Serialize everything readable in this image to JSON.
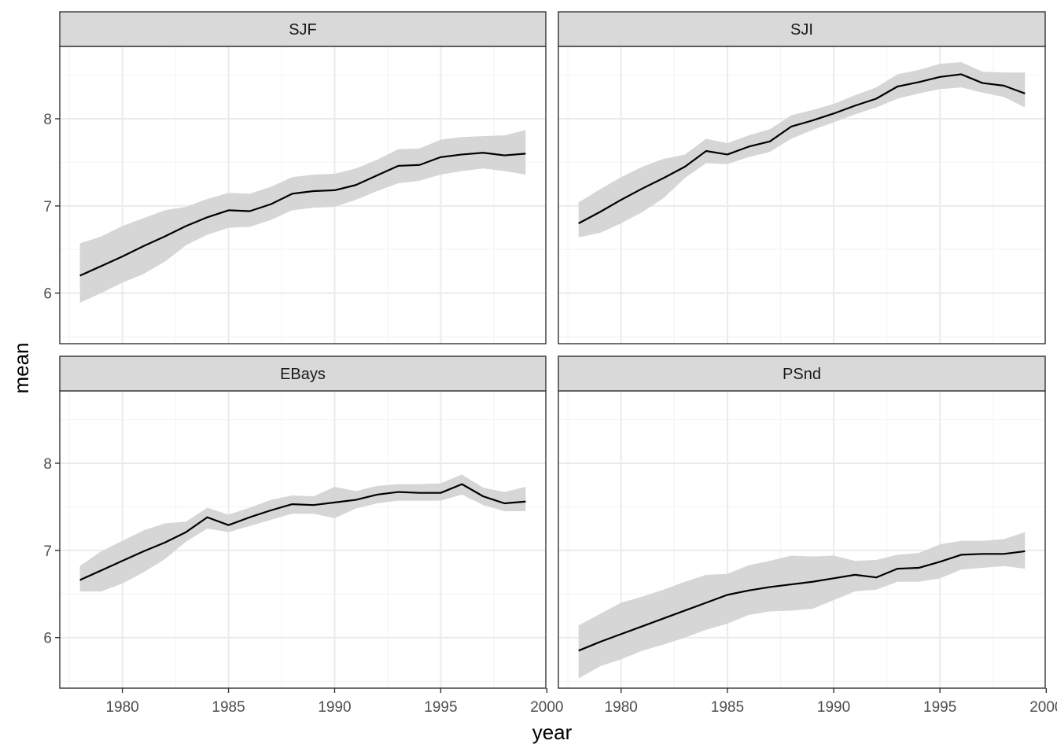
{
  "chart_data": {
    "type": "line",
    "layout": "facet-grid-2x2",
    "xlabel": "year",
    "ylabel": "mean",
    "xlim": [
      1977.05,
      1999.95
    ],
    "ylim": [
      5.42,
      8.83
    ],
    "x_ticks": [
      1980,
      1985,
      1990,
      1995,
      2000
    ],
    "y_ticks": [
      6,
      7,
      8
    ],
    "colors": {
      "line": "#000000",
      "ribbon": "#d6d6d6",
      "strip": "#d9d9d9",
      "border": "#333333",
      "grid_major": "#ebebeb",
      "grid_minor": "#f5f5f5"
    },
    "panels": [
      {
        "name": "SJF",
        "x": [
          1978,
          1979,
          1980,
          1981,
          1982,
          1983,
          1984,
          1985,
          1986,
          1987,
          1988,
          1989,
          1990,
          1991,
          1992,
          1993,
          1994,
          1995,
          1996,
          1997,
          1998,
          1999
        ],
        "mean": [
          6.2,
          6.31,
          6.42,
          6.54,
          6.65,
          6.77,
          6.87,
          6.95,
          6.94,
          7.02,
          7.14,
          7.17,
          7.18,
          7.24,
          7.35,
          7.46,
          7.47,
          7.56,
          7.59,
          7.61,
          7.58,
          7.6
        ],
        "lower": [
          5.89,
          6.0,
          6.12,
          6.22,
          6.36,
          6.55,
          6.67,
          6.75,
          6.76,
          6.84,
          6.95,
          6.98,
          6.99,
          7.07,
          7.17,
          7.26,
          7.29,
          7.36,
          7.4,
          7.43,
          7.4,
          7.36
        ],
        "upper": [
          6.57,
          6.65,
          6.77,
          6.86,
          6.95,
          6.99,
          7.08,
          7.15,
          7.14,
          7.22,
          7.33,
          7.36,
          7.37,
          7.43,
          7.53,
          7.65,
          7.66,
          7.76,
          7.79,
          7.8,
          7.81,
          7.87
        ]
      },
      {
        "name": "SJI",
        "x": [
          1978,
          1979,
          1980,
          1981,
          1982,
          1983,
          1984,
          1985,
          1986,
          1987,
          1988,
          1989,
          1990,
          1991,
          1992,
          1993,
          1994,
          1995,
          1996,
          1997,
          1998,
          1999
        ],
        "mean": [
          6.8,
          6.93,
          7.07,
          7.2,
          7.32,
          7.45,
          7.63,
          7.59,
          7.68,
          7.74,
          7.91,
          7.98,
          8.06,
          8.15,
          8.23,
          8.37,
          8.42,
          8.48,
          8.51,
          8.41,
          8.38,
          8.29
        ],
        "lower": [
          6.64,
          6.69,
          6.8,
          6.93,
          7.09,
          7.32,
          7.49,
          7.48,
          7.56,
          7.62,
          7.77,
          7.87,
          7.96,
          8.05,
          8.13,
          8.23,
          8.29,
          8.34,
          8.36,
          8.3,
          8.25,
          8.13
        ],
        "upper": [
          7.04,
          7.19,
          7.33,
          7.45,
          7.54,
          7.59,
          7.77,
          7.72,
          7.81,
          7.88,
          8.04,
          8.1,
          8.17,
          8.27,
          8.36,
          8.51,
          8.56,
          8.63,
          8.65,
          8.54,
          8.53,
          8.53
        ]
      },
      {
        "name": "EBays",
        "x": [
          1978,
          1979,
          1980,
          1981,
          1982,
          1983,
          1984,
          1985,
          1986,
          1987,
          1988,
          1989,
          1990,
          1991,
          1992,
          1993,
          1994,
          1995,
          1996,
          1997,
          1998,
          1999
        ],
        "mean": [
          6.66,
          6.77,
          6.88,
          6.99,
          7.09,
          7.21,
          7.38,
          7.29,
          7.38,
          7.46,
          7.53,
          7.52,
          7.55,
          7.58,
          7.64,
          7.67,
          7.66,
          7.66,
          7.76,
          7.62,
          7.54,
          7.56
        ],
        "lower": [
          6.53,
          6.53,
          6.62,
          6.75,
          6.9,
          7.1,
          7.25,
          7.21,
          7.28,
          7.35,
          7.42,
          7.42,
          7.37,
          7.48,
          7.54,
          7.57,
          7.57,
          7.57,
          7.64,
          7.52,
          7.45,
          7.45
        ],
        "upper": [
          6.82,
          6.99,
          7.11,
          7.23,
          7.31,
          7.33,
          7.49,
          7.41,
          7.49,
          7.58,
          7.63,
          7.62,
          7.73,
          7.68,
          7.74,
          7.76,
          7.76,
          7.77,
          7.87,
          7.72,
          7.67,
          7.73
        ]
      },
      {
        "name": "PSnd",
        "x": [
          1978,
          1979,
          1980,
          1981,
          1982,
          1983,
          1984,
          1985,
          1986,
          1987,
          1988,
          1989,
          1990,
          1991,
          1992,
          1993,
          1994,
          1995,
          1996,
          1997,
          1998,
          1999
        ],
        "mean": [
          5.85,
          5.95,
          6.04,
          6.13,
          6.22,
          6.31,
          6.4,
          6.49,
          6.54,
          6.58,
          6.61,
          6.64,
          6.68,
          6.72,
          6.69,
          6.79,
          6.8,
          6.87,
          6.95,
          6.96,
          6.96,
          6.99
        ],
        "lower": [
          5.53,
          5.67,
          5.75,
          5.85,
          5.92,
          6.0,
          6.09,
          6.16,
          6.26,
          6.3,
          6.31,
          6.33,
          6.43,
          6.53,
          6.55,
          6.64,
          6.64,
          6.68,
          6.78,
          6.8,
          6.82,
          6.79
        ],
        "upper": [
          6.14,
          6.27,
          6.4,
          6.47,
          6.55,
          6.64,
          6.72,
          6.73,
          6.83,
          6.88,
          6.94,
          6.93,
          6.94,
          6.88,
          6.89,
          6.95,
          6.97,
          7.07,
          7.11,
          7.11,
          7.13,
          7.21
        ]
      }
    ]
  }
}
